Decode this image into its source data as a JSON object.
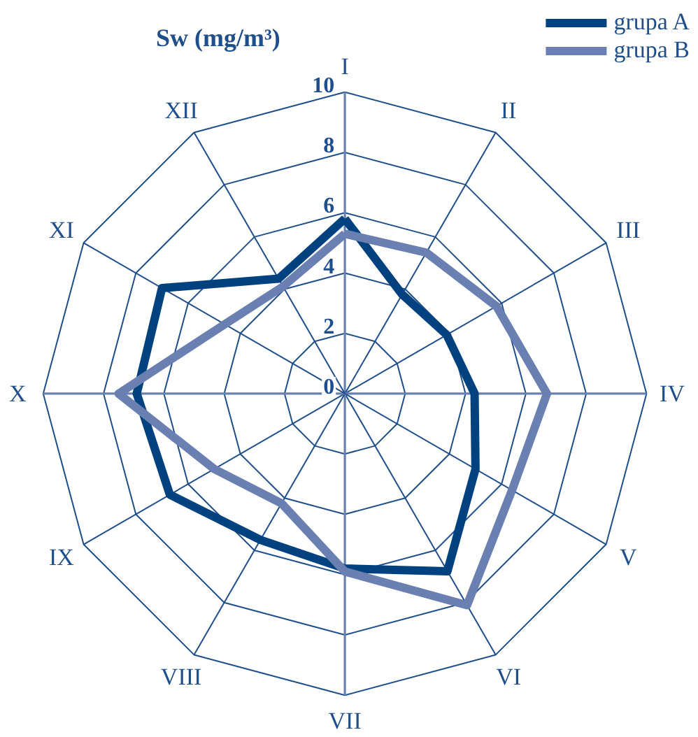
{
  "chart_data": {
    "type": "radar",
    "title": "Sw (mg/m³)",
    "categories": [
      "I",
      "II",
      "III",
      "IV",
      "V",
      "VI",
      "VII",
      "VIII",
      "IX",
      "X",
      "XI",
      "XII"
    ],
    "series": [
      {
        "name": "grupa A",
        "color": "#00427f",
        "values": [
          5.8,
          3.8,
          3.9,
          4.3,
          5.0,
          6.8,
          5.8,
          5.6,
          6.7,
          6.9,
          7.0,
          4.4
        ]
      },
      {
        "name": "grupa B",
        "color": "#6a80b2",
        "values": [
          5.3,
          5.4,
          5.8,
          6.7,
          6.4,
          8.1,
          5.9,
          4.2,
          5.0,
          7.5,
          4.6,
          4.1
        ]
      }
    ],
    "ylim": [
      0,
      10
    ],
    "yticks": [
      0,
      2,
      4,
      6,
      8,
      10
    ],
    "grid": true,
    "legend": "top right",
    "marker": "none",
    "line_style": "solid"
  }
}
